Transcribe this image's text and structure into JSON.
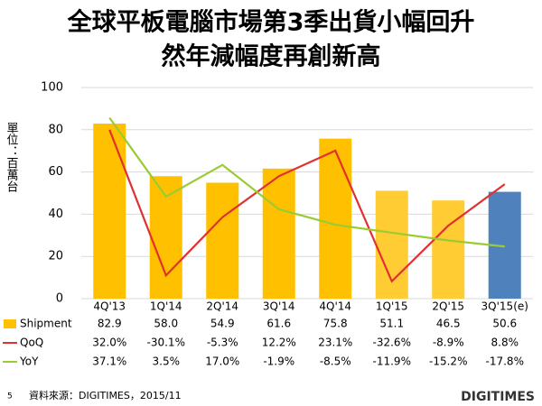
{
  "chart_data": {
    "type": "bar",
    "title": [
      "全球平板電腦市場第3季出貨小幅回升",
      "然年減幅度再創新高"
    ],
    "y_label": "單位：百萬台",
    "categories": [
      "4Q'13",
      "1Q'14",
      "2Q'14",
      "3Q'14",
      "4Q'14",
      "1Q'15",
      "2Q'15",
      "3Q'15(e)"
    ],
    "ylim": [
      0,
      100
    ],
    "yticks": [
      0,
      20,
      40,
      60,
      80,
      100
    ],
    "grid": true,
    "y2lim": [
      -40,
      50
    ],
    "series": [
      {
        "name": "Shipment",
        "type": "bar",
        "color": "#FFC000",
        "colors": [
          "#FFC000",
          "#FFC000",
          "#FFC000",
          "#FFC000",
          "#FFC000",
          "#FFCC33",
          "#FFCC33",
          "#4F81BD"
        ],
        "values": [
          82.9,
          58.0,
          54.9,
          61.6,
          75.8,
          51.1,
          46.5,
          50.6
        ],
        "value_labels": [
          "82.9",
          "58.0",
          "54.9",
          "61.6",
          "75.8",
          "51.1",
          "46.5",
          "50.6"
        ]
      },
      {
        "name": "QoQ",
        "type": "line",
        "axis": "y2",
        "color": "#E03030",
        "values": [
          32.0,
          -30.1,
          -5.3,
          12.2,
          23.1,
          -32.6,
          -8.9,
          8.8
        ],
        "value_labels": [
          "32.0%",
          "-30.1%",
          "-5.3%",
          "12.2%",
          "23.1%",
          "-32.6%",
          "-8.9%",
          "8.8%"
        ]
      },
      {
        "name": "YoY",
        "type": "line",
        "axis": "y2",
        "color": "#99CC33",
        "values": [
          37.1,
          3.5,
          17.0,
          -1.9,
          -8.5,
          -11.9,
          -15.2,
          -17.8
        ],
        "value_labels": [
          "37.1%",
          "3.5%",
          "17.0%",
          "-1.9%",
          "-8.5%",
          "-11.9%",
          "-15.2%",
          "-17.8%"
        ]
      }
    ],
    "page_number": "5",
    "source": "資料來源：DIGITIMES，2015/11",
    "logo": "DIGITIMES"
  }
}
